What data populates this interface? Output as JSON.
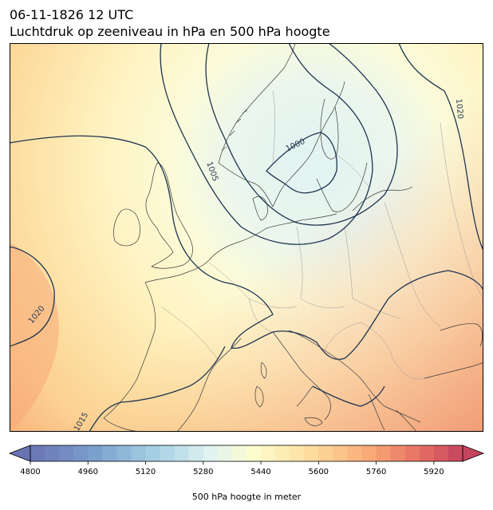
{
  "title_line1": "06-11-1826 12 UTC",
  "title_line2": "Luchtdruk op zeeniveau in hPa en 500 hPa hoogte",
  "colorbar": {
    "label": "500 hPa hoogte in meter",
    "min": 4800,
    "max": 6000,
    "step": 40,
    "ticks": [
      "4800",
      "4960",
      "5120",
      "5280",
      "5440",
      "5600",
      "5760",
      "5920"
    ],
    "extend": "both"
  },
  "isobars": {
    "labels": [
      "1000",
      "1005",
      "1020",
      "1020",
      "1015"
    ]
  },
  "colors": {
    "isobar": "#1f3550",
    "coast": "#3a3a3a",
    "border": "#9a9a9a"
  }
}
